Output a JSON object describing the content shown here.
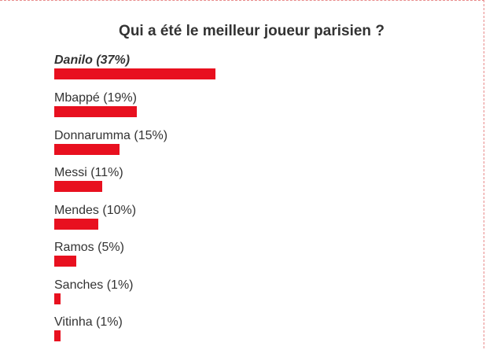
{
  "poll": {
    "title": "Qui a été le meilleur joueur parisien ?",
    "bar_color": "#e8101f",
    "options": [
      {
        "label": "Danilo (37%)",
        "percent": 37,
        "leader": true
      },
      {
        "label": "Mbappé (19%)",
        "percent": 19,
        "leader": false
      },
      {
        "label": "Donnarumma (15%)",
        "percent": 15,
        "leader": false
      },
      {
        "label": "Messi (11%)",
        "percent": 11,
        "leader": false
      },
      {
        "label": "Mendes (10%)",
        "percent": 10,
        "leader": false
      },
      {
        "label": "Ramos (5%)",
        "percent": 5,
        "leader": false
      },
      {
        "label": "Sanches (1%)",
        "percent": 1,
        "leader": false
      },
      {
        "label": "Vitinha (1%)",
        "percent": 1,
        "leader": false
      }
    ]
  }
}
